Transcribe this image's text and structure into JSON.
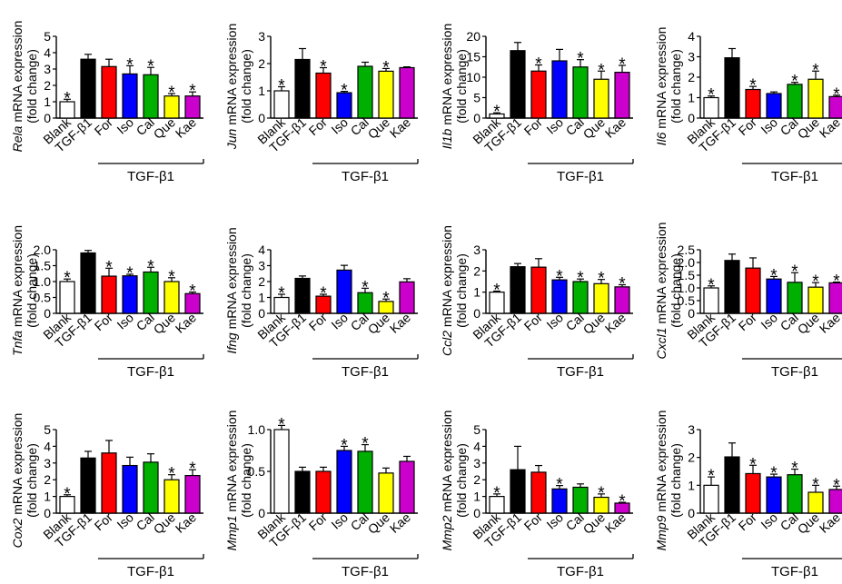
{
  "figure": {
    "categories": [
      "Blank",
      "TGF-β1",
      "For",
      "Iso",
      "Cal",
      "Que",
      "Kae"
    ],
    "group_label": "TGF-β1",
    "ylabel_suffix": " mRNA expression",
    "ylabel_unit": "(fold change)",
    "significance_symbol": "*"
  },
  "colors": {
    "Blank": "#ffffff",
    "TGF-β1": "#000000",
    "For": "#ff0000",
    "Iso": "#0000ff",
    "Cal": "#00b000",
    "Que": "#ffff00",
    "Kae": "#cc00cc"
  },
  "chart_data": [
    {
      "type": "bar",
      "gene": "Rela",
      "ylim": [
        0,
        5
      ],
      "ticks": [
        "0",
        "1",
        "2",
        "3",
        "4",
        "5"
      ],
      "values": [
        1.0,
        3.6,
        3.15,
        2.7,
        2.65,
        1.35,
        1.35
      ],
      "errors": [
        0.15,
        0.3,
        0.45,
        0.5,
        0.45,
        0.15,
        0.25
      ],
      "significant": [
        true,
        false,
        false,
        true,
        true,
        true,
        true
      ]
    },
    {
      "type": "bar",
      "gene": "Jun",
      "ylim": [
        0,
        3
      ],
      "ticks": [
        "0",
        "1",
        "2",
        "3"
      ],
      "values": [
        1.0,
        2.15,
        1.65,
        0.93,
        1.9,
        1.72,
        1.85
      ],
      "errors": [
        0.15,
        0.4,
        0.2,
        0.05,
        0.15,
        0.1,
        0.03
      ],
      "significant": [
        true,
        false,
        true,
        true,
        false,
        true,
        false
      ]
    },
    {
      "type": "bar",
      "gene": "Il1b",
      "ylim": [
        0,
        20
      ],
      "ticks": [
        "0",
        "5",
        "10",
        "15",
        "20"
      ],
      "values": [
        1.0,
        16.5,
        11.5,
        14.0,
        12.5,
        9.5,
        11.2
      ],
      "errors": [
        0.3,
        2.0,
        1.5,
        2.8,
        1.8,
        2.0,
        1.7
      ],
      "significant": [
        true,
        false,
        true,
        false,
        true,
        true,
        true
      ]
    },
    {
      "type": "bar",
      "gene": "Il6",
      "ylim": [
        0,
        4
      ],
      "ticks": [
        "0",
        "1",
        "2",
        "3",
        "4"
      ],
      "values": [
        1.0,
        2.95,
        1.4,
        1.2,
        1.65,
        1.9,
        1.05
      ],
      "errors": [
        0.08,
        0.45,
        0.15,
        0.08,
        0.1,
        0.4,
        0.07
      ],
      "significant": [
        true,
        false,
        true,
        false,
        true,
        true,
        true
      ]
    },
    {
      "type": "bar",
      "gene": "Tnfa",
      "ylim": [
        0,
        2.0
      ],
      "ticks": [
        "0",
        "0.5",
        "1.0",
        "1.5",
        "2.0"
      ],
      "values": [
        1.0,
        1.9,
        1.17,
        1.18,
        1.3,
        1.0,
        0.62
      ],
      "errors": [
        0.08,
        0.08,
        0.25,
        0.05,
        0.15,
        0.12,
        0.05
      ],
      "significant": [
        true,
        false,
        true,
        true,
        true,
        true,
        true
      ]
    },
    {
      "type": "bar",
      "gene": "Ifng",
      "ylim": [
        0,
        4
      ],
      "ticks": [
        "0",
        "1",
        "2",
        "3",
        "4"
      ],
      "values": [
        1.0,
        2.2,
        1.08,
        2.72,
        1.3,
        0.75,
        1.98
      ],
      "errors": [
        0.2,
        0.15,
        0.12,
        0.3,
        0.28,
        0.15,
        0.2
      ],
      "significant": [
        true,
        false,
        true,
        false,
        true,
        true,
        false
      ]
    },
    {
      "type": "bar",
      "gene": "Ccl2",
      "ylim": [
        0,
        3
      ],
      "ticks": [
        "0",
        "1",
        "2",
        "3"
      ],
      "values": [
        1.0,
        2.2,
        2.18,
        1.58,
        1.5,
        1.4,
        1.25
      ],
      "errors": [
        0.05,
        0.15,
        0.4,
        0.12,
        0.12,
        0.2,
        0.1
      ],
      "significant": [
        true,
        false,
        false,
        true,
        true,
        true,
        true
      ]
    },
    {
      "type": "bar",
      "gene": "Cxcl1",
      "ylim": [
        0,
        2.5
      ],
      "ticks": [
        "0",
        "0.5",
        "1.0",
        "1.5",
        "2.0",
        "2.5"
      ],
      "values": [
        1.0,
        2.08,
        1.78,
        1.35,
        1.22,
        1.03,
        1.2
      ],
      "errors": [
        0.08,
        0.25,
        0.4,
        0.1,
        0.38,
        0.18,
        0.03
      ],
      "significant": [
        true,
        false,
        false,
        true,
        true,
        true,
        true
      ]
    },
    {
      "type": "bar",
      "gene": "Cox2",
      "ylim": [
        0,
        5
      ],
      "ticks": [
        "0",
        "1",
        "2",
        "3",
        "4",
        "5"
      ],
      "values": [
        1.0,
        3.3,
        3.6,
        2.85,
        3.05,
        2.0,
        2.25
      ],
      "errors": [
        0.1,
        0.4,
        0.75,
        0.5,
        0.5,
        0.3,
        0.35
      ],
      "significant": [
        true,
        false,
        false,
        false,
        false,
        true,
        true
      ]
    },
    {
      "type": "bar",
      "gene": "Mmp1",
      "ylim": [
        0,
        1.0
      ],
      "ticks": [
        "0",
        "0.5",
        "1.0"
      ],
      "values": [
        1.0,
        0.5,
        0.5,
        0.75,
        0.74,
        0.48,
        0.62
      ],
      "errors": [
        0.1,
        0.05,
        0.05,
        0.05,
        0.08,
        0.06,
        0.06
      ],
      "significant": [
        true,
        false,
        false,
        true,
        true,
        false,
        false
      ]
    },
    {
      "type": "bar",
      "gene": "Mmp2",
      "ylim": [
        0,
        5
      ],
      "ticks": [
        "0",
        "1",
        "2",
        "3",
        "4",
        "5"
      ],
      "values": [
        1.0,
        2.6,
        2.45,
        1.45,
        1.55,
        0.95,
        0.6
      ],
      "errors": [
        0.15,
        1.4,
        0.4,
        0.2,
        0.2,
        0.2,
        0.05
      ],
      "significant": [
        true,
        false,
        false,
        true,
        false,
        true,
        true
      ]
    },
    {
      "type": "bar",
      "gene": "Mmp9",
      "ylim": [
        0,
        3
      ],
      "ticks": [
        "0",
        "1",
        "2",
        "3"
      ],
      "values": [
        1.0,
        2.02,
        1.42,
        1.3,
        1.38,
        0.75,
        0.85
      ],
      "errors": [
        0.3,
        0.5,
        0.3,
        0.1,
        0.2,
        0.25,
        0.12
      ],
      "significant": [
        true,
        false,
        true,
        true,
        true,
        true,
        true
      ]
    }
  ]
}
